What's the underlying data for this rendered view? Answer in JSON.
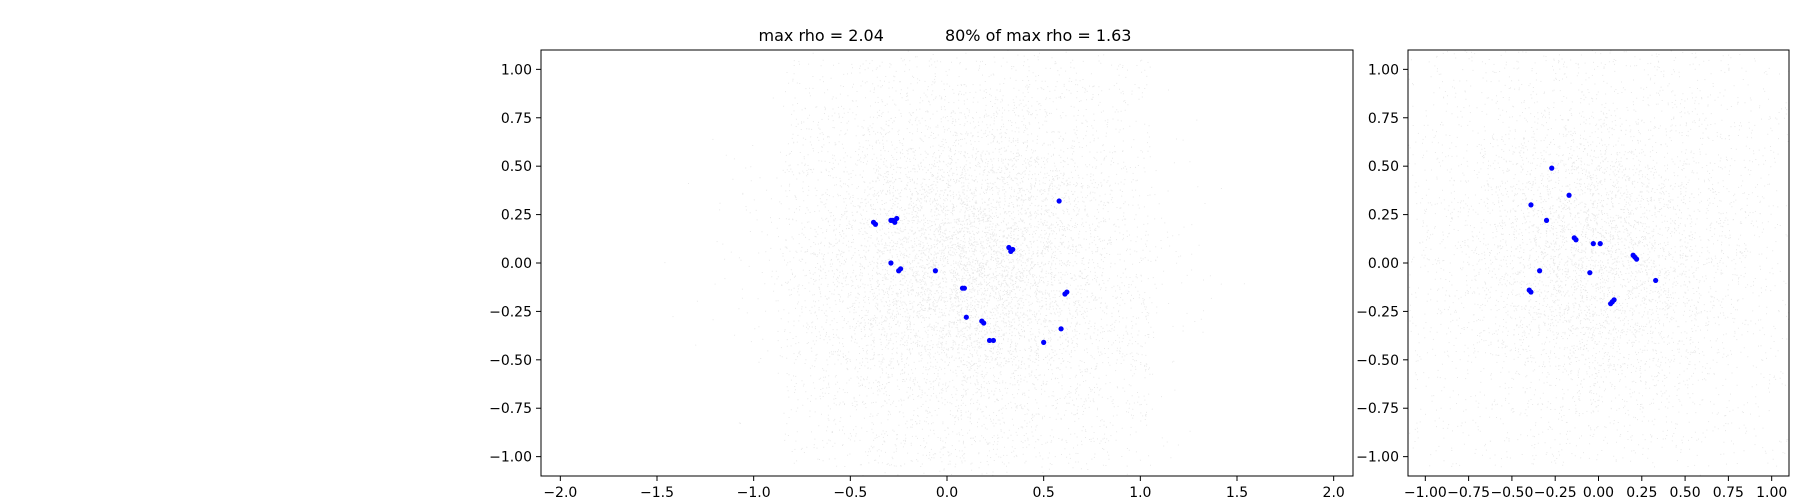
{
  "chart_data": [
    {
      "type": "scatter",
      "title": "max rho = 2.04            80% of max rho = 1.63",
      "xlabel": "",
      "ylabel": "",
      "xlim": [
        -2.1,
        2.1
      ],
      "ylim": [
        -1.1,
        1.1
      ],
      "x_ticks": [
        "−2.0",
        "−1.5",
        "−1.0",
        "−0.5",
        "0.0",
        "0.5",
        "1.0",
        "1.5",
        "2.0"
      ],
      "x_tick_values": [
        -2.0,
        -1.5,
        -1.0,
        -0.5,
        0.0,
        0.5,
        1.0,
        1.5,
        2.0
      ],
      "y_ticks": [
        "1.00",
        "0.75",
        "0.50",
        "0.25",
        "0.00",
        "−0.25",
        "−0.50",
        "−0.75",
        "−1.00"
      ],
      "y_tick_values": [
        1.0,
        0.75,
        0.5,
        0.25,
        0.0,
        -0.25,
        -0.5,
        -0.75,
        -1.0
      ],
      "grid": false,
      "background_points": {
        "color": "#000000",
        "distribution": "dense faint gray cloud centered near (0.1, 0.0), spread about ±0.9 in x and ±1.0 in y"
      },
      "series": [
        {
          "color": "#0000ff",
          "x": [
            -0.38,
            -0.37,
            -0.28,
            -0.26,
            -0.27,
            -0.29,
            0.32,
            0.34,
            0.33,
            0.58,
            -0.29,
            -0.24,
            -0.25,
            -0.06,
            0.08,
            0.09,
            0.61,
            0.62,
            0.1,
            0.18,
            0.19,
            0.22,
            0.24,
            0.5,
            0.59
          ],
          "y": [
            0.21,
            0.2,
            0.22,
            0.23,
            0.21,
            0.22,
            0.08,
            0.07,
            0.06,
            0.32,
            0.0,
            -0.03,
            -0.04,
            -0.04,
            -0.13,
            -0.13,
            -0.16,
            -0.15,
            -0.28,
            -0.3,
            -0.31,
            -0.4,
            -0.4,
            -0.41,
            -0.34
          ]
        }
      ]
    },
    {
      "type": "scatter",
      "title": "",
      "xlabel": "",
      "ylabel": "",
      "xlim": [
        -1.1,
        1.1
      ],
      "ylim": [
        -1.1,
        1.1
      ],
      "x_ticks": [
        "−1.00",
        "−0.75",
        "−0.50",
        "−0.25",
        "0.00",
        "0.25",
        "0.50",
        "0.75",
        "1.00"
      ],
      "x_tick_values": [
        -1.0,
        -0.75,
        -0.5,
        -0.25,
        0.0,
        0.25,
        0.5,
        0.75,
        1.0
      ],
      "y_ticks": [
        "1.00",
        "0.75",
        "0.50",
        "0.25",
        "0.00",
        "−0.25",
        "−0.50",
        "−0.75",
        "−1.00"
      ],
      "y_tick_values": [
        1.0,
        0.75,
        0.5,
        0.25,
        0.0,
        -0.25,
        -0.5,
        -0.75,
        -1.0
      ],
      "grid": false,
      "background_points": {
        "color": "#000000",
        "distribution": "dense faint gray cloud centered near (0.0, 0.05), filling about ±1.0 in x and y"
      },
      "series": [
        {
          "color": "#0000ff",
          "x": [
            -0.27,
            -0.17,
            -0.3,
            -0.39,
            -0.14,
            -0.13,
            -0.03,
            0.01,
            0.2,
            0.22,
            0.21,
            -0.05,
            -0.34,
            -0.4,
            -0.39,
            0.08,
            0.07,
            0.09,
            0.33
          ],
          "y": [
            0.49,
            0.35,
            0.22,
            0.3,
            0.13,
            0.12,
            0.1,
            0.1,
            0.04,
            0.02,
            0.03,
            -0.05,
            -0.04,
            -0.14,
            -0.15,
            -0.2,
            -0.21,
            -0.19,
            -0.09
          ]
        }
      ]
    }
  ]
}
